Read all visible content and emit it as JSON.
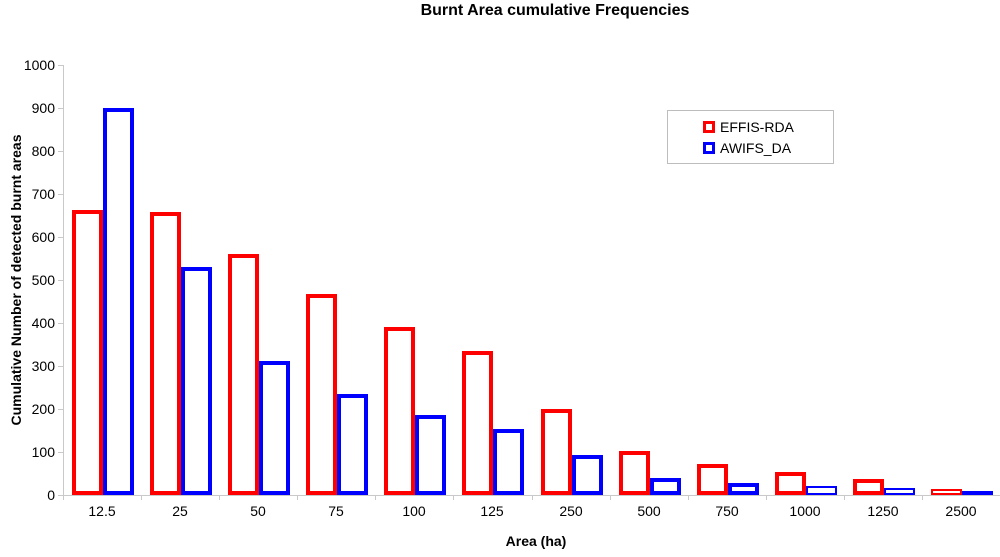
{
  "chart_data": {
    "type": "bar",
    "title": "Burnt Area cumulative Frequencies",
    "xlabel": "Area (ha)",
    "ylabel": "Cumulative Number of detected burnt areas",
    "categories": [
      "12.5",
      "25",
      "50",
      "75",
      "100",
      "125",
      "250",
      "500",
      "750",
      "1000",
      "1250",
      "2500"
    ],
    "series": [
      {
        "name": "EFFIS-RDA",
        "color": "#FF0000",
        "values": [
          662,
          658,
          561,
          467,
          391,
          336,
          200,
          102,
          71,
          53,
          38,
          15
        ]
      },
      {
        "name": "AWIFS_DA",
        "color": "#0000FF",
        "values": [
          900,
          531,
          311,
          234,
          186,
          154,
          93,
          40,
          28,
          20,
          16,
          8
        ]
      }
    ],
    "ylim": [
      0,
      1000
    ],
    "ytick_step": 100,
    "grid": false,
    "legend_position": "top-right",
    "bar_style": "outlined-hollow",
    "axis_color": "#C9C9C9",
    "background": "#FFFFFF"
  }
}
